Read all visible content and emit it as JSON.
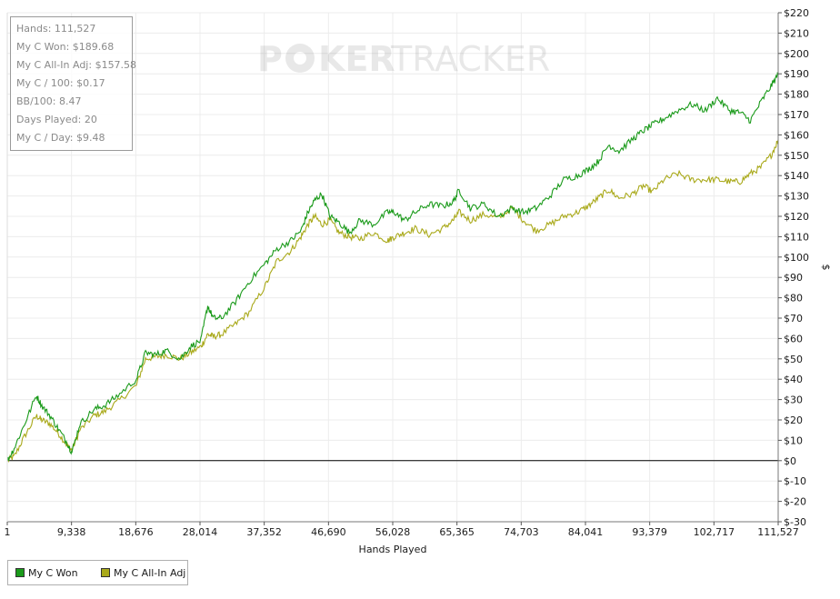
{
  "stats": [
    "Hands: 111,527",
    "My C Won: $189.68",
    "My C All-In Adj: $157.58",
    "My C / 100: $0.17",
    "BB/100: 8.47",
    "Days Played: 20",
    "My C / Day: $9.48"
  ],
  "chart_data": {
    "type": "line",
    "xlabel": "Hands Played",
    "ylabel": "$",
    "xlim": [
      1,
      111527
    ],
    "ylim": [
      -30,
      220
    ],
    "x_ticks": [
      "1",
      "9,338",
      "18,676",
      "28,014",
      "37,352",
      "46,690",
      "56,028",
      "65,365",
      "74,703",
      "84,041",
      "93,379",
      "102,717",
      "111,527"
    ],
    "y_ticks": [
      "$220",
      "$210",
      "$200",
      "$190",
      "$180",
      "$170",
      "$160",
      "$150",
      "$140",
      "$130",
      "$120",
      "$110",
      "$100",
      "$90",
      "$80",
      "$70",
      "$60",
      "$50",
      "$40",
      "$30",
      "$20",
      "$10",
      "$0",
      "$-10",
      "$-20",
      "$-30"
    ],
    "grid": true,
    "legend_position": "bottom-left",
    "series": [
      {
        "name": "My C Won",
        "color": "#1a9a1a",
        "x": [
          1,
          1000,
          2500,
          4200,
          5000,
          6200,
          7500,
          8800,
          9338,
          10500,
          12500,
          14000,
          16000,
          18676,
          20000,
          21500,
          23000,
          25000,
          26500,
          28014,
          29000,
          29800,
          31000,
          33000,
          35000,
          37352,
          39000,
          41000,
          42500,
          43500,
          44500,
          45500,
          46690,
          48000,
          49500,
          51000,
          53000,
          55000,
          56028,
          57500,
          59000,
          61000,
          63000,
          64500,
          65365,
          67000,
          69000,
          71000,
          73000,
          74703,
          76500,
          78500,
          80500,
          82500,
          84041,
          85500,
          87000,
          88500,
          90500,
          92000,
          93379,
          95000,
          97000,
          99000,
          101000,
          102717,
          104500,
          106000,
          107500,
          109000,
          110500,
          111527
        ],
        "values": [
          0,
          6,
          18,
          32,
          27,
          22,
          15,
          8,
          4,
          18,
          25,
          27,
          32,
          40,
          53,
          52,
          54,
          50,
          56,
          59,
          76,
          70,
          70,
          78,
          88,
          97,
          104,
          108,
          113,
          122,
          128,
          131,
          120,
          117,
          112,
          118,
          116,
          122,
          122,
          118,
          122,
          126,
          125,
          127,
          133,
          124,
          126,
          120,
          124,
          122,
          124,
          130,
          138,
          140,
          143,
          147,
          155,
          152,
          158,
          162,
          165,
          168,
          172,
          175,
          172,
          178,
          172,
          171,
          167,
          176,
          184,
          189.68
        ]
      },
      {
        "name": "My C All-In Adj",
        "color": "#a9a91a",
        "x": [
          1,
          1000,
          2500,
          4200,
          5000,
          6200,
          7500,
          8800,
          9338,
          10500,
          12500,
          14000,
          16000,
          18676,
          20000,
          21500,
          23000,
          25000,
          26500,
          28014,
          29000,
          29800,
          31000,
          33000,
          35000,
          37352,
          39000,
          41000,
          42500,
          43500,
          44500,
          45500,
          46690,
          48000,
          49500,
          51000,
          53000,
          55000,
          56028,
          57500,
          59000,
          61000,
          63000,
          64500,
          65365,
          67000,
          69000,
          71000,
          73000,
          74703,
          76500,
          78500,
          80500,
          82500,
          84041,
          85500,
          87000,
          88500,
          90500,
          92000,
          93379,
          95000,
          97000,
          99000,
          101000,
          102717,
          104500,
          106000,
          107500,
          109000,
          110500,
          111527
        ],
        "values": [
          0,
          2,
          12,
          22,
          20,
          18,
          13,
          7,
          5,
          15,
          22,
          24,
          29,
          37,
          50,
          51,
          52,
          50,
          53,
          56,
          62,
          61,
          62,
          67,
          73,
          86,
          98,
          103,
          110,
          116,
          120,
          116,
          118,
          112,
          110,
          109,
          112,
          108,
          110,
          112,
          114,
          111,
          114,
          118,
          122,
          118,
          121,
          119,
          124,
          118,
          113,
          116,
          120,
          122,
          125,
          129,
          133,
          129,
          131,
          135,
          132,
          138,
          141,
          138,
          138,
          138,
          137,
          137,
          141,
          144,
          150,
          157.58
        ]
      }
    ]
  }
}
